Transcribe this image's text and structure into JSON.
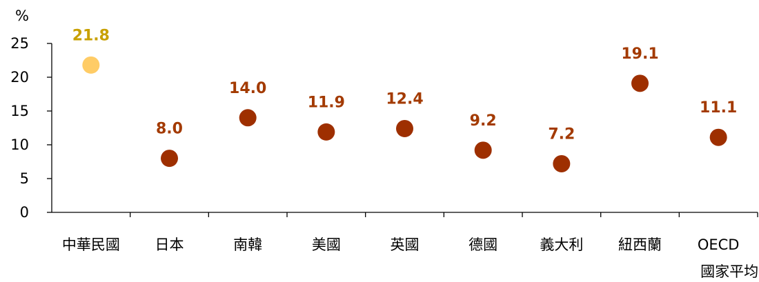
{
  "chart_data": {
    "type": "scatter",
    "ylabel": "%",
    "ylim": [
      0,
      25
    ],
    "yticks": [
      "0",
      "5",
      "10",
      "15",
      "20",
      "25"
    ],
    "grid": false,
    "categories": [
      "中華民國",
      "日本",
      "南韓",
      "美國",
      "英國",
      "德國",
      "義大利",
      "紐西蘭",
      "OECD\n國家平均"
    ],
    "values": [
      21.8,
      8.0,
      14.0,
      11.9,
      12.4,
      9.2,
      7.2,
      19.1,
      11.1
    ],
    "labels": [
      "21.8",
      "8.0",
      "14.0",
      "11.9",
      "12.4",
      "9.2",
      "7.2",
      "19.1",
      "11.1"
    ],
    "highlight_index": 0,
    "colors": {
      "highlight_point": "#FFCC66",
      "highlight_label": "#C8A000",
      "point": "#9E2F00",
      "label": "#A33A00"
    }
  }
}
